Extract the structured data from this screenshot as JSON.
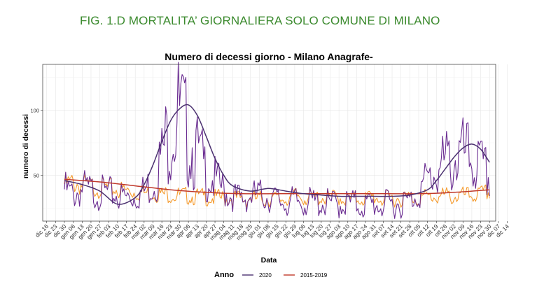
{
  "figure_title": "FIG. 1.D MORTALITA’ GIORNALIERA SOLO COMUNE DI MILANO",
  "colors": {
    "title_green": "#3b8a2e",
    "series_2020_raw": "#6a2c91",
    "series_2020_smooth": "#4b3170",
    "series_2015_2019_raw": "#f59b2e",
    "series_2015_2019_smooth": "#c0392b",
    "gridline": "#e6e6e6"
  },
  "chart_data": {
    "type": "line",
    "title": "Numero di decessi giorno - Milano Anagrafe-",
    "xlabel": "Data",
    "ylabel": "numero di decessi",
    "x_ticks": [
      "dic 16",
      "dic 23",
      "dic 30",
      "gen 06",
      "gen 13",
      "gen 20",
      "gen 27",
      "feb 03",
      "feb 10",
      "feb 17",
      "feb 24",
      "mar 02",
      "mar 09",
      "mar 16",
      "mar 23",
      "mar 30",
      "apr 06",
      "apr 13",
      "apr 20",
      "apr 27",
      "mag 04",
      "mag 11",
      "mag 18",
      "mag 25",
      "giu 01",
      "giu 08",
      "giu 15",
      "giu 22",
      "giu 29",
      "lug 06",
      "lug 13",
      "lug 20",
      "lug 27",
      "ago 03",
      "ago 10",
      "ago 17",
      "ago 24",
      "ago 31",
      "set 07",
      "set 14",
      "set 21",
      "set 28",
      "ott 05",
      "ott 12",
      "ott 19",
      "ott 26",
      "nov 02",
      "nov 09",
      "nov 16",
      "nov 23",
      "nov 30",
      "dic 07",
      "dic 14"
    ],
    "y_ticks": [
      50,
      100
    ],
    "ylim": [
      15,
      135
    ],
    "grid": true,
    "legend": {
      "title": "Anno",
      "position": "bottom",
      "entries": [
        "2020",
        "2015-2019"
      ]
    },
    "series": [
      {
        "name": "2020",
        "kind": "raw",
        "x_days": [
          0,
          7,
          14,
          21,
          28,
          35,
          42,
          49,
          56,
          63,
          70,
          77,
          84,
          91,
          98,
          105,
          112,
          119,
          126,
          133,
          140,
          147,
          154,
          161,
          168,
          175,
          182,
          189,
          196,
          203,
          210,
          217,
          224,
          231,
          238,
          245,
          252,
          259,
          266,
          273,
          280,
          287,
          294,
          301,
          308,
          315,
          322,
          329,
          336
        ],
        "values": [
          47,
          41,
          48,
          45,
          44,
          43,
          41,
          39,
          40,
          45,
          55,
          80,
          112,
          122,
          100,
          82,
          66,
          55,
          46,
          40,
          38,
          40,
          42,
          39,
          37,
          35,
          36,
          36,
          35,
          35,
          34,
          34,
          35,
          34,
          33,
          34,
          33,
          34,
          35,
          36,
          44,
          56,
          65,
          72,
          78,
          80,
          76,
          68,
          59
        ]
      },
      {
        "name": "2020",
        "kind": "smoothed",
        "x_days": [
          0,
          14,
          28,
          42,
          56,
          63,
          70,
          77,
          84,
          91,
          98,
          105,
          112,
          119,
          126,
          133,
          147,
          161,
          175,
          189,
          203,
          217,
          231,
          245,
          259,
          273,
          287,
          294,
          301,
          308,
          315,
          322,
          329,
          336
        ],
        "values": [
          46,
          43,
          38,
          28,
          33,
          43,
          58,
          76,
          92,
          101,
          104,
          96,
          80,
          63,
          50,
          42,
          38,
          40,
          38,
          36,
          35,
          34,
          34,
          34,
          34,
          35,
          39,
          46,
          55,
          64,
          71,
          74,
          70,
          60
        ]
      },
      {
        "name": "2015-2019",
        "kind": "raw",
        "x_days": [
          0,
          7,
          14,
          21,
          28,
          35,
          42,
          49,
          56,
          63,
          70,
          77,
          84,
          91,
          98,
          105,
          112,
          119,
          126,
          133,
          140,
          147,
          154,
          161,
          168,
          175,
          182,
          189,
          196,
          203,
          210,
          217,
          224,
          231,
          238,
          245,
          252,
          259,
          266,
          273,
          280,
          287,
          294,
          301,
          308,
          315,
          322,
          329,
          336
        ],
        "values": [
          48,
          49,
          47,
          46,
          45,
          44,
          43,
          42,
          41,
          40,
          40,
          39,
          39,
          38,
          38,
          37,
          37,
          36,
          36,
          36,
          35,
          36,
          35,
          36,
          35,
          36,
          38,
          37,
          36,
          37,
          36,
          37,
          35,
          36,
          36,
          37,
          35,
          36,
          36,
          37,
          36,
          37,
          37,
          38,
          37,
          38,
          38,
          39,
          41
        ]
      },
      {
        "name": "2015-2019",
        "kind": "smoothed",
        "x_days": [
          0,
          28,
          56,
          84,
          112,
          140,
          168,
          196,
          224,
          252,
          280,
          308,
          336
        ],
        "values": [
          47,
          45,
          42,
          39,
          37,
          36,
          36,
          36,
          36,
          36,
          36,
          37,
          39
        ]
      }
    ]
  }
}
